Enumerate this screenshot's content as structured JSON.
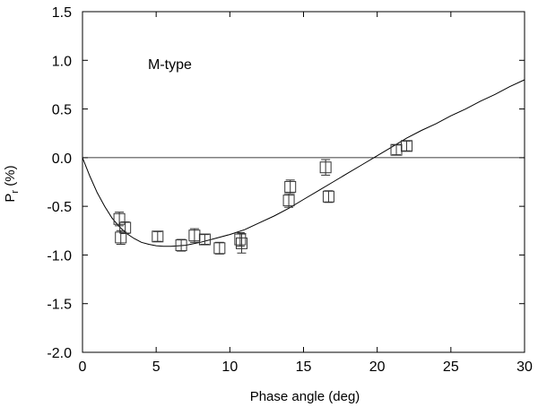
{
  "chart_data": {
    "type": "scatter",
    "title": "",
    "annotation": "M-type",
    "xlabel": "Phase angle (deg)",
    "ylabel_main": "P",
    "ylabel_sub": "r",
    "ylabel_tail": " (%)",
    "xlim": [
      0,
      30
    ],
    "ylim": [
      -2.0,
      1.5
    ],
    "x_ticks": [
      0,
      5,
      10,
      15,
      20,
      25,
      30
    ],
    "x_tick_labels": [
      "0",
      "5",
      "10",
      "15",
      "20",
      "25",
      "30"
    ],
    "y_ticks": [
      1.5,
      1.0,
      0.5,
      0.0,
      -0.5,
      -1.0,
      -1.5,
      -2.0
    ],
    "y_tick_labels": [
      "1.5",
      "1.0",
      "0.5",
      "0.0",
      "-0.5",
      "-1.0",
      "-1.5",
      "-2.0"
    ],
    "grid": false,
    "reference_line_y": 0.0,
    "points": [
      {
        "x": 2.5,
        "y": -0.63,
        "err": 0.07
      },
      {
        "x": 2.6,
        "y": -0.82,
        "err": 0.07
      },
      {
        "x": 2.9,
        "y": -0.72,
        "err": 0.06
      },
      {
        "x": 5.1,
        "y": -0.81,
        "err": 0.05
      },
      {
        "x": 6.7,
        "y": -0.9,
        "err": 0.06
      },
      {
        "x": 7.6,
        "y": -0.8,
        "err": 0.07
      },
      {
        "x": 8.3,
        "y": -0.84,
        "err": 0.05
      },
      {
        "x": 9.3,
        "y": -0.93,
        "err": 0.06
      },
      {
        "x": 10.7,
        "y": -0.84,
        "err": 0.07
      },
      {
        "x": 10.8,
        "y": -0.88,
        "err": 0.1
      },
      {
        "x": 14.0,
        "y": -0.44,
        "err": 0.07
      },
      {
        "x": 14.1,
        "y": -0.3,
        "err": 0.07
      },
      {
        "x": 16.5,
        "y": -0.1,
        "err": 0.08
      },
      {
        "x": 16.7,
        "y": -0.4,
        "err": 0.06
      },
      {
        "x": 21.3,
        "y": 0.08,
        "err": 0.05
      },
      {
        "x": 22.0,
        "y": 0.12,
        "err": 0.05
      }
    ],
    "fit_curve": [
      {
        "x": 0.0,
        "y": 0.0
      },
      {
        "x": 0.5,
        "y": -0.19
      },
      {
        "x": 1.0,
        "y": -0.36
      },
      {
        "x": 1.5,
        "y": -0.5
      },
      {
        "x": 2.0,
        "y": -0.62
      },
      {
        "x": 2.5,
        "y": -0.71
      },
      {
        "x": 3.0,
        "y": -0.78
      },
      {
        "x": 3.5,
        "y": -0.83
      },
      {
        "x": 4.0,
        "y": -0.87
      },
      {
        "x": 4.5,
        "y": -0.89
      },
      {
        "x": 5.0,
        "y": -0.905
      },
      {
        "x": 5.5,
        "y": -0.91
      },
      {
        "x": 6.0,
        "y": -0.91
      },
      {
        "x": 7.0,
        "y": -0.9
      },
      {
        "x": 8.0,
        "y": -0.87
      },
      {
        "x": 9.0,
        "y": -0.83
      },
      {
        "x": 10.0,
        "y": -0.79
      },
      {
        "x": 11.0,
        "y": -0.74
      },
      {
        "x": 12.0,
        "y": -0.67
      },
      {
        "x": 13.0,
        "y": -0.6
      },
      {
        "x": 14.0,
        "y": -0.52
      },
      {
        "x": 15.0,
        "y": -0.43
      },
      {
        "x": 16.0,
        "y": -0.34
      },
      {
        "x": 17.0,
        "y": -0.25
      },
      {
        "x": 18.0,
        "y": -0.16
      },
      {
        "x": 19.0,
        "y": -0.07
      },
      {
        "x": 20.0,
        "y": 0.02
      },
      {
        "x": 21.0,
        "y": 0.11
      },
      {
        "x": 22.0,
        "y": 0.2
      },
      {
        "x": 23.0,
        "y": 0.28
      },
      {
        "x": 24.0,
        "y": 0.35
      },
      {
        "x": 25.0,
        "y": 0.43
      },
      {
        "x": 26.0,
        "y": 0.5
      },
      {
        "x": 27.0,
        "y": 0.58
      },
      {
        "x": 28.0,
        "y": 0.65
      },
      {
        "x": 29.0,
        "y": 0.73
      },
      {
        "x": 30.0,
        "y": 0.8
      }
    ]
  }
}
